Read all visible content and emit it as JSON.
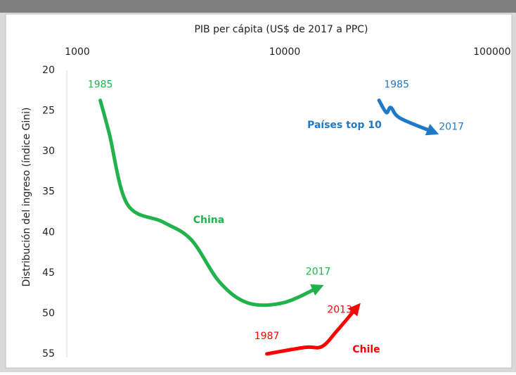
{
  "chart_data": {
    "type": "line",
    "xlabel": "PIB per cápita (US$ de 2017 a PPC)",
    "ylabel": "Distribución del ingreso (índice Gini)",
    "xscale": "log",
    "xlim": [
      1000,
      100000
    ],
    "xticks": [
      1000,
      10000,
      100000
    ],
    "ylim": [
      20,
      55
    ],
    "yticks": [
      20,
      25,
      30,
      35,
      40,
      45,
      50,
      55
    ],
    "y_inverted": true,
    "series": [
      {
        "name": "China",
        "color": "#22b24c",
        "start_label": "1985",
        "end_label": "2017",
        "x": [
          1290,
          1426,
          1740,
          2580,
          3540,
          4840,
          6630,
          9800,
          14500
        ],
        "values": [
          23.7,
          27.8,
          36.5,
          38.7,
          40.9,
          46.1,
          48.7,
          48.7,
          46.8
        ]
      },
      {
        "name": "Chile",
        "color": "#ff0000",
        "start_label": "1987",
        "end_label": "2013",
        "x": [
          8200,
          12500,
          15100,
          17800,
          22200
        ],
        "values": [
          55.0,
          54.2,
          54.1,
          52.2,
          49.3
        ]
      },
      {
        "name": "Países top 10",
        "color": "#1f78c8",
        "start_label": "1985",
        "end_label": "2017",
        "x": [
          28500,
          30900,
          32500,
          36000,
          52000
        ],
        "values": [
          23.7,
          25.2,
          24.6,
          25.9,
          27.6
        ]
      }
    ]
  }
}
